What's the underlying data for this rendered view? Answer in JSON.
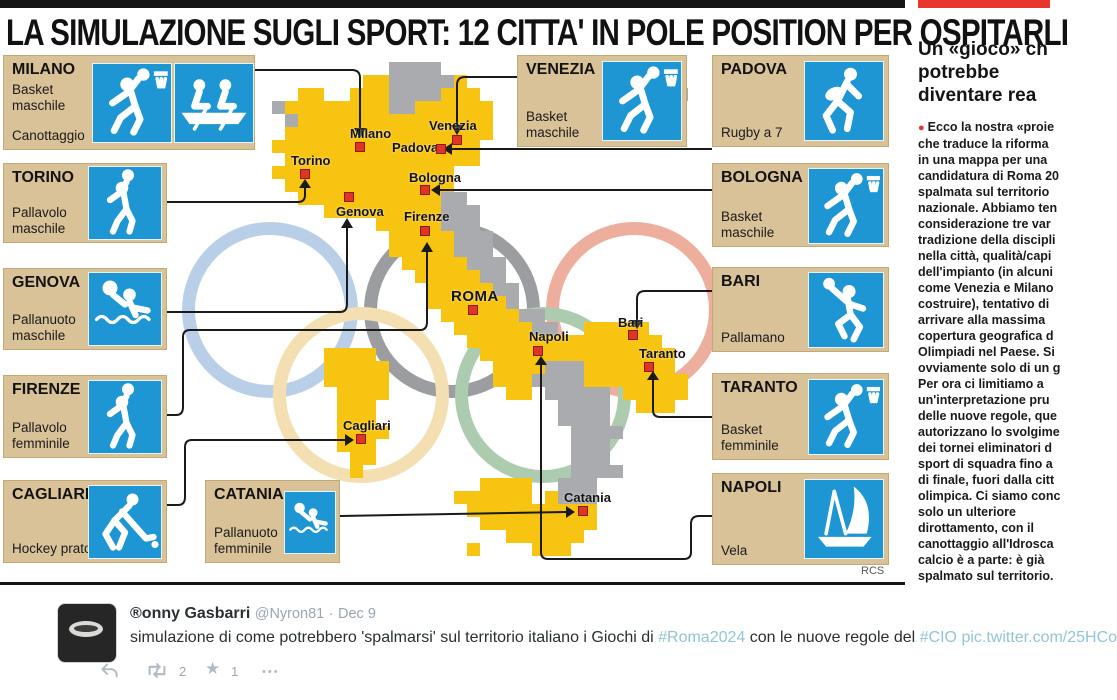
{
  "colors": {
    "map_yellow": "#f7c411",
    "map_gray": "#a9abae",
    "marker_red": "#e03524",
    "icon_blue": "#1d96d3",
    "card_tan": "#d9c298",
    "accent_red": "#e8352e",
    "link_blue": "#94c4d4",
    "ring_blue": "#b9cfe7",
    "ring_black": "#9b9da1",
    "ring_red": "#eeae9e",
    "ring_yellow": "#f3dfb2",
    "ring_green": "#accbaf"
  },
  "infographic": {
    "title": "LA SIMULAZIONE SUGLI SPORT: 12 CITTA' IN POLE POSITION PER OSPITARLI",
    "credit": "RCS",
    "cards": [
      {
        "city": "MILANO",
        "sports": [
          "Basket maschile",
          "Canottaggio"
        ]
      },
      {
        "city": "TORINO",
        "sports": [
          "Pallavolo maschile"
        ]
      },
      {
        "city": "GENOVA",
        "sports": [
          "Pallanuoto maschile"
        ]
      },
      {
        "city": "FIRENZE",
        "sports": [
          "Pallavolo femminile"
        ]
      },
      {
        "city": "CAGLIARI",
        "sports": [
          "Hockey prato"
        ]
      },
      {
        "city": "VENEZIA",
        "sports": [
          "Basket maschile"
        ]
      },
      {
        "city": "CATANIA",
        "sports": [
          "Pallanuoto femminile"
        ]
      },
      {
        "city": "PADOVA",
        "sports": [
          "Rugby a 7"
        ]
      },
      {
        "city": "BOLOGNA",
        "sports": [
          "Basket maschile"
        ]
      },
      {
        "city": "BARI",
        "sports": [
          "Pallamano"
        ]
      },
      {
        "city": "TARANTO",
        "sports": [
          "Basket femminile"
        ]
      },
      {
        "city": "NAPOLI",
        "sports": [
          "Vela"
        ]
      }
    ],
    "map_labels": {
      "milano": "Milano",
      "venezia": "Venezia",
      "padova": "Padova",
      "torino": "Torino",
      "bologna": "Bologna",
      "genova": "Genova",
      "firenze": "Firenze",
      "roma": "ROMA",
      "napoli": "Napoli",
      "bari": "Bari",
      "taranto": "Taranto",
      "cagliari": "Cagliari",
      "catania": "Catania"
    }
  },
  "article": {
    "headline_lines": [
      "Un «gioco» ch",
      "potrebbe",
      "diventare rea"
    ],
    "bullet": "●",
    "body_lines": [
      "Ecco la nostra «proie",
      "che traduce la riforma",
      "in una mappa per una",
      "candidatura di Roma 20",
      "spalmata sul territorio",
      "nazionale. Abbiamo ten",
      "considerazione tre var",
      "tradizione della discipli",
      "nella città, qualità/capi",
      "dell'impianto (in alcuni",
      "come Venezia e Milano",
      "costruire), tentativo di",
      "arrivare alla massima",
      "copertura geografica d",
      "Olimpiadi nel Paese. Si",
      "ovviamente solo di un g",
      "Per ora ci limitiamo a",
      "un'interpretazione pru",
      "delle nuove regole, que",
      "autorizzano lo svolgime",
      "dei tornei eliminatori d",
      "sport di squadra fino a",
      "di finale, fuori dalla citt",
      "olimpica. Ci siamo conc",
      "solo un ulteriore",
      "dirottamento, con il",
      "canottaggio all'Idrosca",
      "calcio è a parte: è già",
      "spalmato sul territorio."
    ]
  },
  "tweet": {
    "display_name": "®onny Gasbarri",
    "handle": "@Nyron81",
    "dot": "·",
    "date": "Dec 9",
    "text_parts": [
      {
        "text": "simulazione di come potrebbero 'spalmarsi' sul territorio italiano i Giochi di ",
        "link": false
      },
      {
        "text": "#Roma2024",
        "link": true
      },
      {
        "text": " con le nuove regole del ",
        "link": false
      },
      {
        "text": "#CIO",
        "link": true
      },
      {
        "text": " ",
        "link": false
      },
      {
        "text": "pic.twitter.com/25HCo",
        "link": true
      }
    ],
    "actions": {
      "retweet_count": "2",
      "favorite_count": "1",
      "more": "•••",
      "star": "★"
    }
  },
  "map_grid": [
    ".........gggg.............ggg....",
    ".......yygggggy...........ggggg..",
    "..yy..yyyggggyyy..........gggggg.",
    "gyyyyyyyyggyyyyyy..........gggg..",
    ".gyyyyyyyyyyyyyyy...........ggg..",
    ".yyyyyyyyyyyyyyyy................",
    "yyyyyyyyyyyyyyyy.................",
    ".yyyyyyyyyyyyyyy.................",
    "yyyyyyyyyyyyyy...................",
    ".yyyyyyyyyyyyy...................",
    "..yyyyyyyyyyygg..................",
    "....yyyyyyyyyggg.................",
    "........yyyyyggg.................",
    ".........yyyyyggg................",
    ".........yyyyyggg................",
    "..........yyyyyggg...............",
    "...........yyyyygg...............",
    "............yyyyygg..............",
    "............yyyyyyg..............",
    ".............yyyyyygg............",
    "..............yyyyyygg..yyyyy....",
    "...............yyyyyyyyyyyyyyy...",
    "....yyyy........yyyyyyyyyyyyyyy..",
    "....yyyyy........yyyygggyyyyyyy..",
    "....yyyyy........yyyggggyyyyyyyy.",
    ".....yyyy.........yy.ggggg.yyyyy.",
    ".....yyy..............gggg..yyy..",
    ".....yyy..............gggg.......",
    ".....yyyy..............gggg......",
    ".....yyy...............ggg.......",
    "......yy...............ggg.......",
    "......y................gggg......",
    "................yyyy..ggg........",
    "..............yyyyyy.yggg........",
    "...............yyyyyyyyyy........",
    "................yyyyyyyyy........",
    "..................yyyyyy.........",
    "...............y....yyy.........."
  ]
}
